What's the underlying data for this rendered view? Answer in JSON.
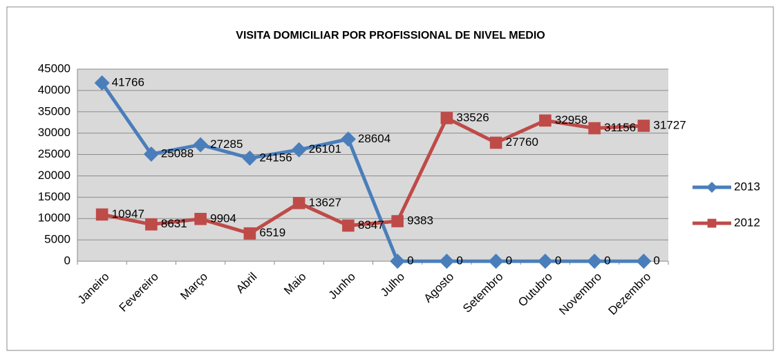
{
  "chart_data": {
    "type": "line",
    "title": "VISITA DOMICILIAR POR PROFISSIONAL DE NIVEL MEDIO",
    "categories": [
      "Janeiro",
      "Fevereiro",
      "Março",
      "Abril",
      "Maio",
      "Junho",
      "Julho",
      "Agosto",
      "Setembro",
      "Outubro",
      "Novembro",
      "Dezembro"
    ],
    "series": [
      {
        "name": "2013",
        "color": "#4a7ebb",
        "marker": "diamond",
        "values": [
          41766,
          25088,
          27285,
          24156,
          26101,
          28604,
          0,
          0,
          0,
          0,
          0,
          0
        ]
      },
      {
        "name": "2012",
        "color": "#be4b48",
        "marker": "square",
        "values": [
          10947,
          8631,
          9904,
          6519,
          13627,
          8347,
          9383,
          33526,
          27760,
          32958,
          31156,
          31727
        ]
      }
    ],
    "ylim": [
      0,
      45000
    ],
    "yticks": [
      0,
      5000,
      10000,
      15000,
      20000,
      25000,
      30000,
      35000,
      40000,
      45000
    ],
    "grid": true,
    "legend": "right"
  }
}
